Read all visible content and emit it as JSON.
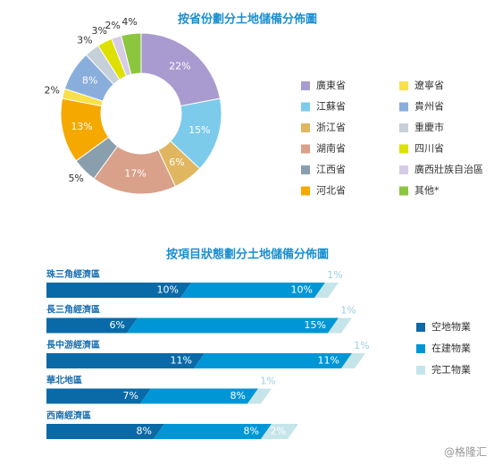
{
  "chart_data": [
    {
      "type": "donut",
      "title": "按省份劃分土地儲備分佈圖",
      "categories": [
        "廣東省",
        "江蘇省",
        "浙江省",
        "湖南省",
        "江西省",
        "河北省",
        "遼寧省",
        "貴州省",
        "重慶市",
        "四川省",
        "廣西壯族自治區",
        "其他*"
      ],
      "values": [
        22,
        15,
        6,
        17,
        5,
        13,
        2,
        8,
        3,
        3,
        2,
        4
      ],
      "value_labels": [
        "22%",
        "15%",
        "6%",
        "17%",
        "5%",
        "13%",
        "2%",
        "8%",
        "3%",
        "3%",
        "2%",
        "4%"
      ],
      "colors": [
        "#a99bd0",
        "#7ccbea",
        "#e0b660",
        "#d9a08a",
        "#8a9fae",
        "#f5a800",
        "#f8e04a",
        "#8aaedc",
        "#c5d0d8",
        "#dde000",
        "#d6cce6",
        "#8cc63f"
      ]
    },
    {
      "type": "stacked-bar",
      "title": "按項目狀態劃分土地儲備分佈圖",
      "categories": [
        "珠三角經濟區",
        "長三角經濟區",
        "長中游經濟區",
        "華北地區",
        "西南經濟區"
      ],
      "series": [
        {
          "name": "空地物業",
          "color": "#0a6aa8",
          "values": [
            10,
            6,
            11,
            7,
            8
          ],
          "value_labels": [
            "10%",
            "6%",
            "11%",
            "7%",
            "8%"
          ]
        },
        {
          "name": "在建物業",
          "color": "#0096d6",
          "values": [
            10,
            15,
            11,
            8,
            8
          ],
          "value_labels": [
            "10%",
            "15%",
            "11%",
            "8%",
            "8%"
          ]
        },
        {
          "name": "完工物業",
          "color": "#c6e5ea",
          "values": [
            1,
            1,
            1,
            1,
            2
          ],
          "value_labels": [
            "1%",
            "1%",
            "1%",
            "1%",
            "2%"
          ]
        }
      ]
    },
    {
      "type": "watermark",
      "title": "@格隆汇"
    }
  ]
}
